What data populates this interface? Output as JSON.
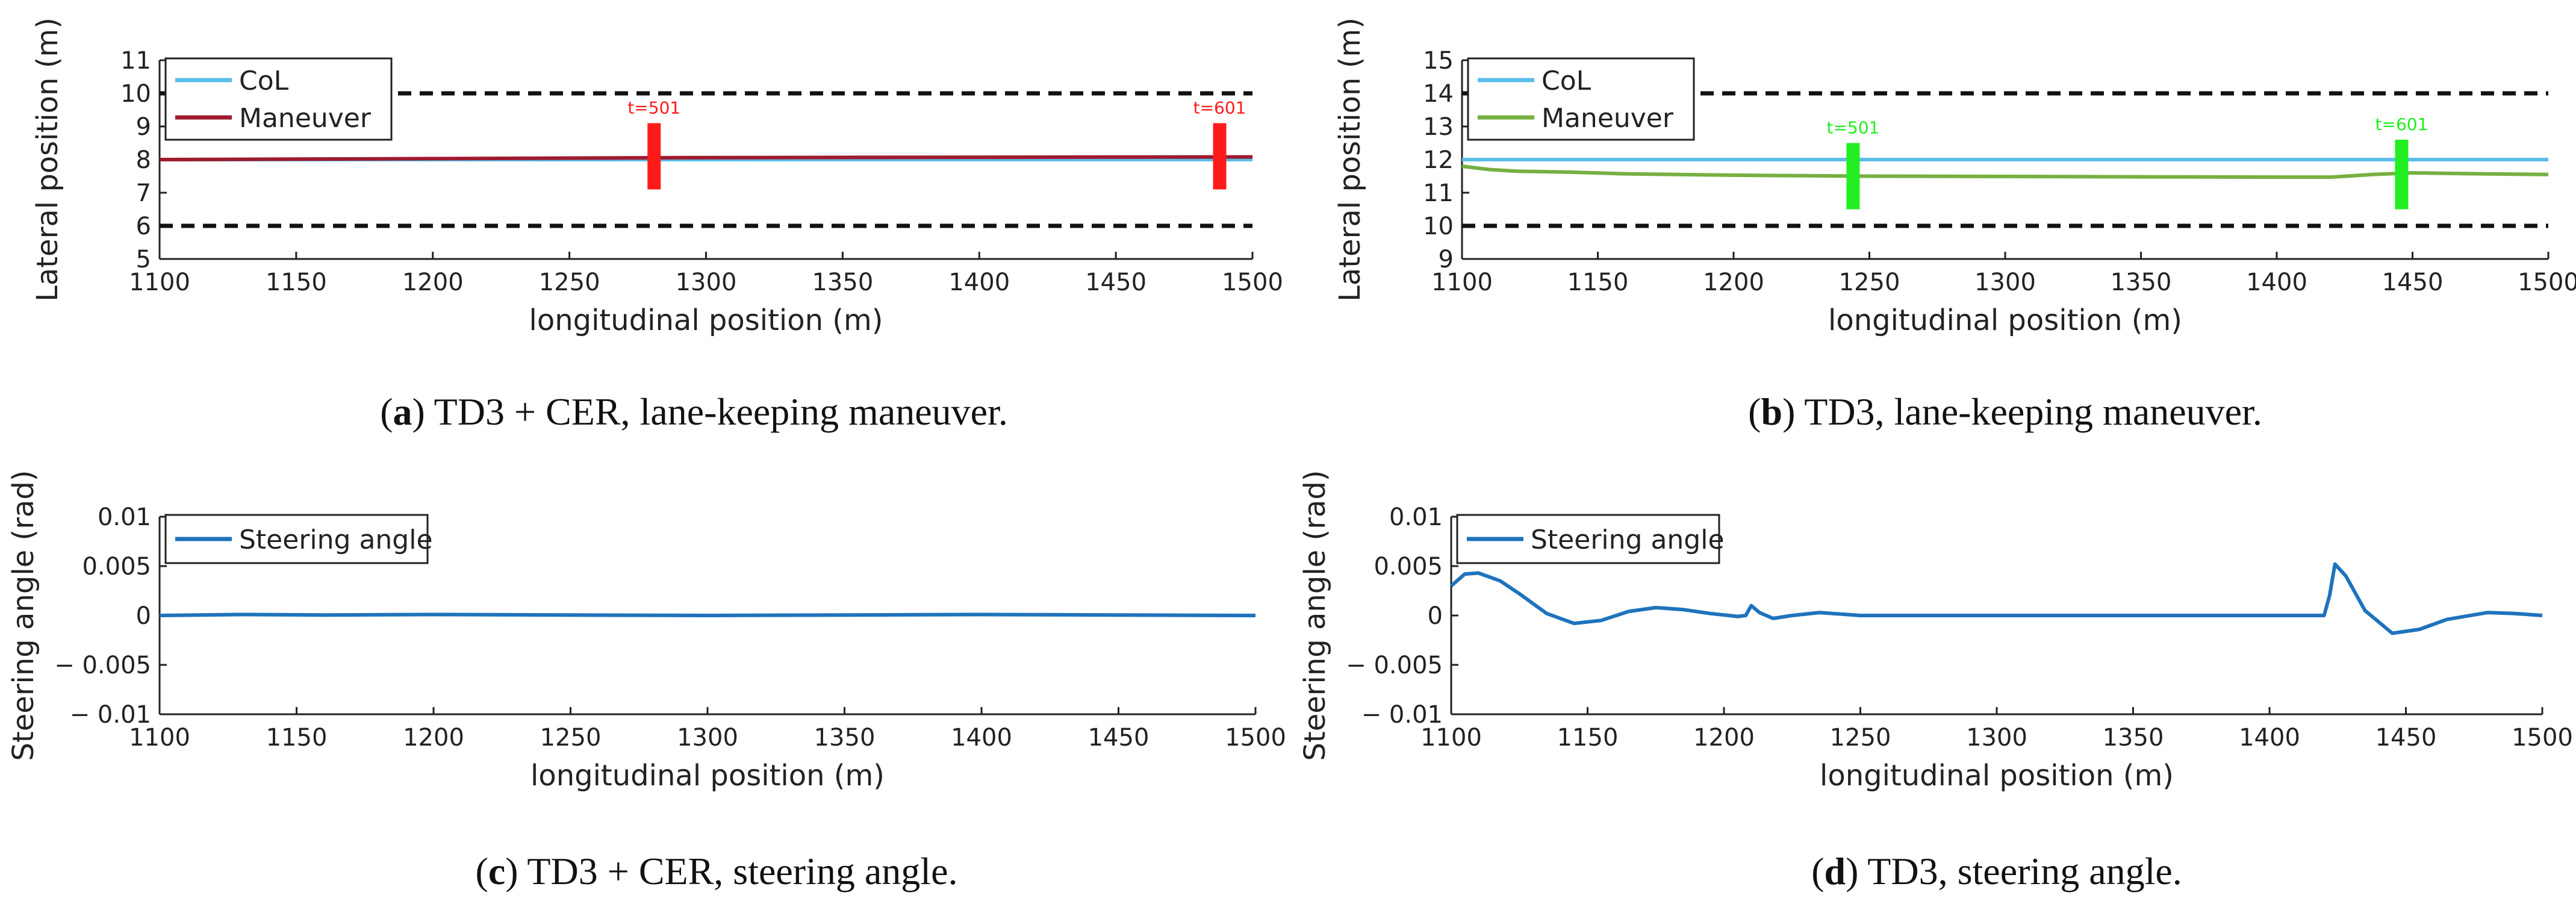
{
  "chart_data": [
    {
      "id": "a",
      "type": "line",
      "caption_letter": "a",
      "caption_text": "TD3 + CER, lane-keeping maneuver.",
      "xlabel": "longitudinal position (m)",
      "ylabel": "Lateral position (m)",
      "xlim": [
        1100,
        1500
      ],
      "ylim": [
        5,
        11
      ],
      "xticks": [
        "1100",
        "1150",
        "1200",
        "1250",
        "1300",
        "1350",
        "1400",
        "1450",
        "1500"
      ],
      "yticks": [
        "5",
        "6",
        "7",
        "8",
        "9",
        "10",
        "11"
      ],
      "legend": "top-left",
      "lane_boundaries": [
        6,
        10
      ],
      "series": [
        {
          "name": "CoL",
          "color": "#5bbde8",
          "x": [
            1100,
            1500
          ],
          "y": [
            8.0,
            8.0
          ]
        },
        {
          "name": "Maneuver",
          "color": "#9e1b2e",
          "x": [
            1100,
            1200,
            1300,
            1400,
            1500
          ],
          "y": [
            8.0,
            8.03,
            8.06,
            8.07,
            8.08
          ]
        }
      ],
      "markers": [
        {
          "label": "t=501",
          "x": 1281,
          "y_low": 7.1,
          "y_high": 9.1,
          "color": "#ff1a1a"
        },
        {
          "label": "t=601",
          "x": 1488,
          "y_low": 7.1,
          "y_high": 9.1,
          "color": "#ff1a1a"
        }
      ]
    },
    {
      "id": "b",
      "type": "line",
      "caption_letter": "b",
      "caption_text": "TD3, lane-keeping maneuver.",
      "xlabel": "longitudinal position (m)",
      "ylabel": "Lateral position (m)",
      "xlim": [
        1100,
        1500
      ],
      "ylim": [
        9,
        15
      ],
      "xticks": [
        "1100",
        "1150",
        "1200",
        "1250",
        "1300",
        "1350",
        "1400",
        "1450",
        "1500"
      ],
      "yticks": [
        "9",
        "10",
        "11",
        "12",
        "13",
        "14",
        "15"
      ],
      "legend": "top-left",
      "lane_boundaries": [
        10,
        14
      ],
      "series": [
        {
          "name": "CoL",
          "color": "#5bbde8",
          "x": [
            1100,
            1500
          ],
          "y": [
            12.0,
            12.0
          ]
        },
        {
          "name": "Maneuver",
          "color": "#77b041",
          "x": [
            1100,
            1110,
            1120,
            1140,
            1160,
            1200,
            1250,
            1300,
            1350,
            1400,
            1420,
            1435,
            1450,
            1475,
            1500
          ],
          "y": [
            11.8,
            11.7,
            11.65,
            11.62,
            11.57,
            11.53,
            11.5,
            11.49,
            11.48,
            11.47,
            11.47,
            11.55,
            11.6,
            11.57,
            11.55
          ]
        }
      ],
      "markers": [
        {
          "label": "t=501",
          "x": 1244,
          "y_low": 10.5,
          "y_high": 12.5,
          "color": "#22ee22"
        },
        {
          "label": "t=601",
          "x": 1446,
          "y_low": 10.5,
          "y_high": 12.6,
          "color": "#22ee22"
        }
      ]
    },
    {
      "id": "c",
      "type": "line",
      "caption_letter": "c",
      "caption_text": "TD3 + CER, steering angle.",
      "xlabel": "longitudinal position (m)",
      "ylabel": "Steering angle (rad)",
      "xlim": [
        1100,
        1500
      ],
      "ylim": [
        -0.01,
        0.01
      ],
      "xticks": [
        "1100",
        "1150",
        "1200",
        "1250",
        "1300",
        "1350",
        "1400",
        "1450",
        "1500"
      ],
      "yticks": [
        "− 0.01",
        "− 0.005",
        "0",
        "0.005",
        "0.01"
      ],
      "legend": "top-left",
      "series": [
        {
          "name": "Steering angle",
          "color": "#1f73bd",
          "x": [
            1100,
            1130,
            1160,
            1200,
            1250,
            1300,
            1350,
            1400,
            1450,
            1500
          ],
          "y": [
            0.0,
            0.0001,
            5e-05,
            0.0001,
            5e-05,
            0.0,
            5e-05,
            0.0001,
            5e-05,
            0.0
          ]
        }
      ]
    },
    {
      "id": "d",
      "type": "line",
      "caption_letter": "d",
      "caption_text": "TD3, steering angle.",
      "xlabel": "longitudinal position (m)",
      "ylabel": "Steering angle (rad)",
      "xlim": [
        1100,
        1500
      ],
      "ylim": [
        -0.01,
        0.01
      ],
      "xticks": [
        "1100",
        "1150",
        "1200",
        "1250",
        "1300",
        "1350",
        "1400",
        "1450",
        "1500"
      ],
      "yticks": [
        "− 0.01",
        "− 0.005",
        "0",
        "0.005",
        "0.01"
      ],
      "legend": "top-left",
      "series": [
        {
          "name": "Steering angle",
          "color": "#1f73bd",
          "x": [
            1100,
            1105,
            1110,
            1118,
            1125,
            1135,
            1145,
            1155,
            1165,
            1175,
            1185,
            1195,
            1205,
            1208,
            1210,
            1213,
            1218,
            1225,
            1235,
            1250,
            1300,
            1350,
            1400,
            1420,
            1422,
            1424,
            1428,
            1435,
            1445,
            1455,
            1465,
            1480,
            1490,
            1500
          ],
          "y": [
            0.003,
            0.0042,
            0.0043,
            0.0035,
            0.0022,
            0.0002,
            -0.0008,
            -0.0005,
            0.0004,
            0.0008,
            0.0006,
            0.0002,
            -0.0001,
            0.0,
            0.001,
            0.0003,
            -0.0003,
            0.0,
            0.0003,
            0.0,
            0.0,
            0.0,
            0.0,
            0.0,
            0.002,
            0.0052,
            0.004,
            0.0005,
            -0.0018,
            -0.0014,
            -0.0004,
            0.0003,
            0.0002,
            0.0
          ]
        }
      ]
    }
  ]
}
